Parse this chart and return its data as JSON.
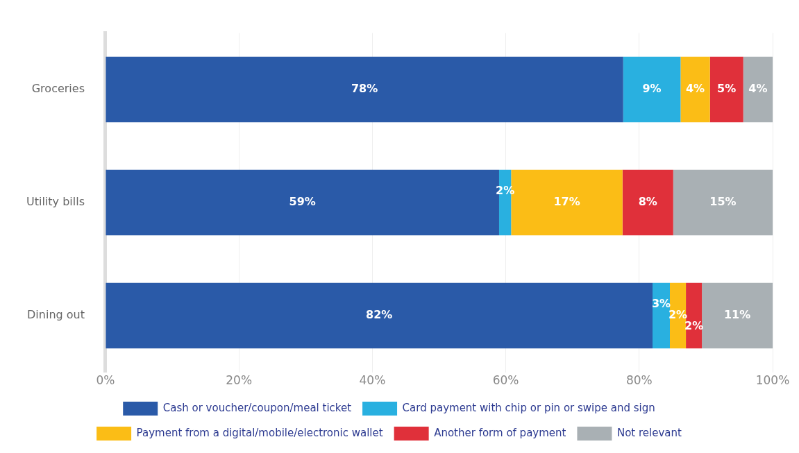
{
  "chart_data": {
    "type": "bar",
    "orientation": "horizontal",
    "stacked": true,
    "categories": [
      "Groceries",
      "Utility bills",
      "Dining out"
    ],
    "series": [
      {
        "name": "Cash or voucher/coupon/meal ticket",
        "color": "#2a5aa8",
        "values": [
          77.6,
          59.0,
          82.0
        ],
        "value_labels": [
          "78%",
          "59%",
          "82%"
        ]
      },
      {
        "name": "Card payment with chip or pin or swipe and sign",
        "color": "#29b0e0",
        "values": [
          8.6,
          1.8,
          2.6
        ],
        "value_labels": [
          "9%",
          "2%",
          "3%"
        ]
      },
      {
        "name": "Payment from a digital/mobile/electronic wallet",
        "color": "#fbbd16",
        "values": [
          4.4,
          16.7,
          2.4
        ],
        "value_labels": [
          "4%",
          "17%",
          "2%"
        ]
      },
      {
        "name": "Another form of payment",
        "color": "#e0303a",
        "values": [
          5.0,
          7.6,
          2.4
        ],
        "value_labels": [
          "5%",
          "8%",
          "2%"
        ]
      },
      {
        "name": "Not relevant",
        "color": "#a9b0b4",
        "values": [
          4.4,
          14.9,
          10.6
        ],
        "value_labels": [
          "4%",
          "15%",
          "11%"
        ]
      }
    ],
    "xlim": [
      0,
      100
    ],
    "xticks": [
      {
        "value": 0,
        "label": "0%"
      },
      {
        "value": 20,
        "label": "20%"
      },
      {
        "value": 40,
        "label": "40%"
      },
      {
        "value": 60,
        "label": "60%"
      },
      {
        "value": 80,
        "label": "80%"
      },
      {
        "value": 100,
        "label": "100%"
      }
    ],
    "grid": "x",
    "legend": "bottom"
  }
}
